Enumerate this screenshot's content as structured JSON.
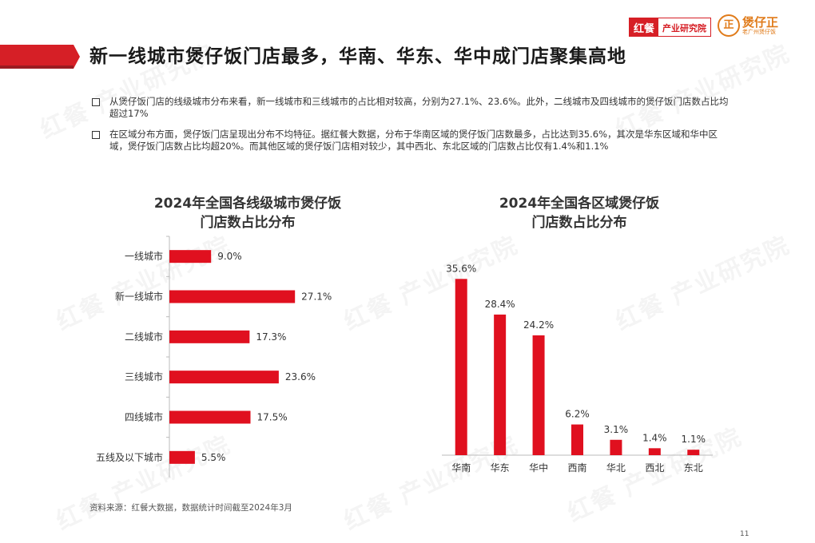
{
  "header": {
    "title": "新一线城市煲仔饭门店最多，华南、华东、华中成门店聚集高地",
    "brand_badge": "红餐",
    "brand_text": "产业研究院",
    "logo2_seal": "正",
    "logo2_name": "煲仔正",
    "logo2_sub": "老广州煲仔饭"
  },
  "bullets": [
    "从煲仔饭门店的线级城市分布来看，新一线城市和三线城市的占比相对较高，分别为27.1%、23.6%。此外，二线城市及四线城市的煲仔饭门店数占比均超过17%",
    "在区域分布方面，煲仔饭门店呈现出分布不均特征。据红餐大数据，分布于华南区域的煲仔饭门店数最多，占比达到35.6%，其次是华东区域和华中区域，煲仔饭门店数占比均超20%。而其他区域的煲仔饭门店相对较少，其中西北、东北区域的门店数占比仅有1.4%和1.1%"
  ],
  "chart_data": [
    {
      "type": "bar",
      "orientation": "horizontal",
      "title_line1": "2024年全国各线级城市煲仔饭",
      "title_line2": "门店数占比分布",
      "categories": [
        "一线城市",
        "新一线城市",
        "二线城市",
        "三线城市",
        "四线城市",
        "五线及以下城市"
      ],
      "values": [
        9.0,
        27.1,
        17.3,
        23.6,
        17.5,
        5.5
      ],
      "value_labels": [
        "9.0%",
        "27.1%",
        "17.3%",
        "23.6%",
        "17.5%",
        "5.5%"
      ],
      "unit": "%",
      "color": "#e0101f"
    },
    {
      "type": "bar",
      "orientation": "vertical",
      "title_line1": "2024年全国各区域煲仔饭",
      "title_line2": "门店数占比分布",
      "categories": [
        "华南",
        "华东",
        "华中",
        "西南",
        "华北",
        "西北",
        "东北"
      ],
      "values": [
        35.6,
        28.4,
        24.2,
        6.2,
        3.1,
        1.4,
        1.1
      ],
      "value_labels": [
        "35.6%",
        "28.4%",
        "24.2%",
        "6.2%",
        "3.1%",
        "1.4%",
        "1.1%"
      ],
      "unit": "%",
      "color": "#e0101f"
    }
  ],
  "footer": {
    "source": "资料来源：红餐大数据，数据统计时间截至2024年3月",
    "page": "11"
  },
  "watermark": "红餐 产业研究院"
}
